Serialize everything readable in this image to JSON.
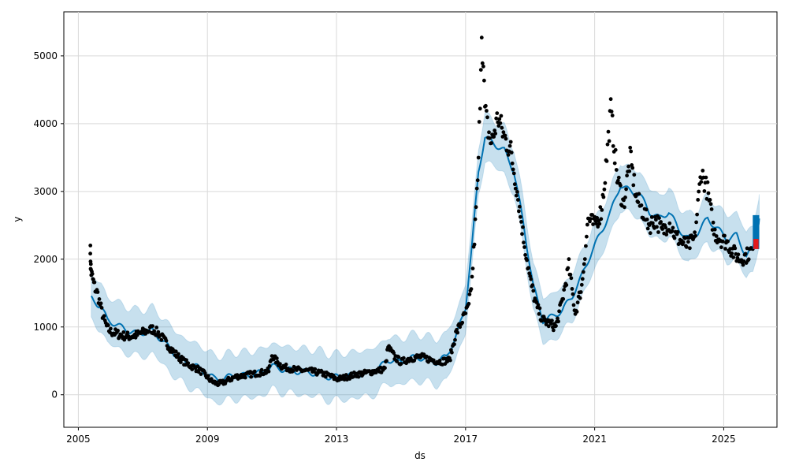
{
  "chart_data": {
    "type": "line",
    "title": "",
    "xlabel": "ds",
    "ylabel": "y",
    "grid": true,
    "legend": "none",
    "xlim": [
      2004.55,
      2026.65
    ],
    "ylim": [
      -480,
      5650
    ],
    "x_ticks": [
      2005,
      2009,
      2013,
      2017,
      2021,
      2025
    ],
    "x_tick_labels": [
      "2005",
      "2009",
      "2013",
      "2017",
      "2021",
      "2025"
    ],
    "y_ticks": [
      0,
      1000,
      2000,
      3000,
      4000,
      5000
    ],
    "y_tick_labels": [
      "0",
      "1000",
      "2000",
      "3000",
      "4000",
      "5000"
    ],
    "series": [
      {
        "kind": "observed",
        "color": "#000000",
        "points": [
          [
            2005.37,
            2200
          ],
          [
            2005.38,
            1920
          ],
          [
            2005.4,
            1800
          ],
          [
            2005.45,
            1700
          ],
          [
            2005.5,
            1600
          ],
          [
            2005.6,
            1480
          ],
          [
            2005.7,
            1280
          ],
          [
            2005.8,
            1100
          ],
          [
            2005.9,
            980
          ],
          [
            2006.0,
            930
          ],
          [
            2006.2,
            900
          ],
          [
            2006.4,
            870
          ],
          [
            2006.6,
            860
          ],
          [
            2006.8,
            880
          ],
          [
            2007.0,
            920
          ],
          [
            2007.3,
            970
          ],
          [
            2007.5,
            900
          ],
          [
            2007.7,
            780
          ],
          [
            2007.9,
            660
          ],
          [
            2008.1,
            560
          ],
          [
            2008.3,
            480
          ],
          [
            2008.5,
            420
          ],
          [
            2008.7,
            380
          ],
          [
            2008.9,
            310
          ],
          [
            2009.1,
            210
          ],
          [
            2009.3,
            160
          ],
          [
            2009.5,
            180
          ],
          [
            2009.7,
            230
          ],
          [
            2009.9,
            270
          ],
          [
            2010.1,
            280
          ],
          [
            2010.3,
            300
          ],
          [
            2010.6,
            320
          ],
          [
            2010.9,
            350
          ],
          [
            2011.0,
            580
          ],
          [
            2011.1,
            520
          ],
          [
            2011.3,
            420
          ],
          [
            2011.6,
            380
          ],
          [
            2011.9,
            360
          ],
          [
            2012.2,
            350
          ],
          [
            2012.5,
            320
          ],
          [
            2012.8,
            280
          ],
          [
            2013.0,
            230
          ],
          [
            2013.3,
            260
          ],
          [
            2013.6,
            300
          ],
          [
            2013.9,
            320
          ],
          [
            2014.2,
            350
          ],
          [
            2014.5,
            380
          ],
          [
            2014.6,
            700
          ],
          [
            2014.8,
            560
          ],
          [
            2015.0,
            480
          ],
          [
            2015.3,
            540
          ],
          [
            2015.6,
            560
          ],
          [
            2015.9,
            520
          ],
          [
            2016.2,
            490
          ],
          [
            2016.5,
            510
          ],
          [
            2016.7,
            900
          ],
          [
            2016.9,
            1100
          ],
          [
            2017.1,
            1300
          ],
          [
            2017.2,
            1700
          ],
          [
            2017.3,
            2500
          ],
          [
            2017.4,
            3400
          ],
          [
            2017.5,
            5420
          ],
          [
            2017.6,
            4200
          ],
          [
            2017.7,
            3900
          ],
          [
            2017.8,
            3700
          ],
          [
            2018.0,
            4100
          ],
          [
            2018.2,
            3800
          ],
          [
            2018.4,
            3600
          ],
          [
            2018.6,
            3000
          ],
          [
            2018.8,
            2300
          ],
          [
            2019.0,
            1700
          ],
          [
            2019.2,
            1300
          ],
          [
            2019.4,
            1100
          ],
          [
            2019.6,
            1050
          ],
          [
            2019.8,
            1000
          ],
          [
            2020.0,
            1400
          ],
          [
            2020.2,
            1900
          ],
          [
            2020.4,
            1200
          ],
          [
            2020.6,
            1600
          ],
          [
            2020.8,
            2600
          ],
          [
            2021.0,
            2500
          ],
          [
            2021.2,
            2700
          ],
          [
            2021.3,
            3100
          ],
          [
            2021.5,
            4200
          ],
          [
            2021.7,
            3200
          ],
          [
            2021.9,
            2800
          ],
          [
            2022.1,
            3500
          ],
          [
            2022.3,
            2900
          ],
          [
            2022.5,
            2700
          ],
          [
            2022.7,
            2500
          ],
          [
            2022.9,
            2600
          ],
          [
            2023.1,
            2400
          ],
          [
            2023.3,
            2550
          ],
          [
            2023.5,
            2350
          ],
          [
            2023.7,
            2250
          ],
          [
            2023.9,
            2200
          ],
          [
            2024.1,
            2300
          ],
          [
            2024.3,
            3300
          ],
          [
            2024.5,
            3000
          ],
          [
            2024.7,
            2400
          ],
          [
            2024.9,
            2300
          ],
          [
            2025.1,
            2250
          ],
          [
            2025.3,
            2100
          ],
          [
            2025.5,
            2000
          ],
          [
            2025.7,
            2050
          ],
          [
            2025.9,
            2150
          ]
        ]
      },
      {
        "kind": "forecast",
        "color": "#0072b2",
        "points": [
          [
            2005.4,
            1420
          ],
          [
            2005.7,
            1300
          ],
          [
            2005.9,
            1100
          ],
          [
            2006.1,
            1060
          ],
          [
            2006.3,
            1000
          ],
          [
            2006.5,
            960
          ],
          [
            2006.8,
            900
          ],
          [
            2007.0,
            920
          ],
          [
            2007.3,
            940
          ],
          [
            2007.5,
            850
          ],
          [
            2007.8,
            700
          ],
          [
            2008.0,
            600
          ],
          [
            2008.3,
            480
          ],
          [
            2008.6,
            430
          ],
          [
            2008.9,
            340
          ],
          [
            2009.2,
            240
          ],
          [
            2009.5,
            230
          ],
          [
            2009.8,
            290
          ],
          [
            2010.1,
            280
          ],
          [
            2010.4,
            300
          ],
          [
            2010.7,
            330
          ],
          [
            2011.0,
            420
          ],
          [
            2011.3,
            380
          ],
          [
            2011.6,
            360
          ],
          [
            2011.9,
            340
          ],
          [
            2012.2,
            330
          ],
          [
            2012.5,
            300
          ],
          [
            2012.8,
            260
          ],
          [
            2013.1,
            260
          ],
          [
            2013.4,
            280
          ],
          [
            2013.7,
            300
          ],
          [
            2014.0,
            320
          ],
          [
            2014.3,
            380
          ],
          [
            2014.6,
            520
          ],
          [
            2014.9,
            480
          ],
          [
            2015.2,
            520
          ],
          [
            2015.5,
            560
          ],
          [
            2015.8,
            520
          ],
          [
            2016.1,
            480
          ],
          [
            2016.4,
            560
          ],
          [
            2016.7,
            850
          ],
          [
            2017.0,
            1300
          ],
          [
            2017.2,
            2200
          ],
          [
            2017.4,
            3300
          ],
          [
            2017.6,
            3800
          ],
          [
            2017.9,
            3700
          ],
          [
            2018.2,
            3600
          ],
          [
            2018.5,
            3300
          ],
          [
            2018.8,
            2500
          ],
          [
            2019.1,
            1600
          ],
          [
            2019.4,
            1100
          ],
          [
            2019.7,
            1150
          ],
          [
            2020.0,
            1250
          ],
          [
            2020.3,
            1450
          ],
          [
            2020.6,
            1750
          ],
          [
            2020.9,
            2100
          ],
          [
            2021.2,
            2400
          ],
          [
            2021.5,
            2700
          ],
          [
            2021.8,
            3100
          ],
          [
            2022.1,
            3000
          ],
          [
            2022.4,
            2950
          ],
          [
            2022.7,
            2700
          ],
          [
            2023.0,
            2600
          ],
          [
            2023.3,
            2700
          ],
          [
            2023.6,
            2450
          ],
          [
            2023.9,
            2300
          ],
          [
            2024.2,
            2400
          ],
          [
            2024.5,
            2600
          ],
          [
            2024.8,
            2450
          ],
          [
            2025.1,
            2300
          ],
          [
            2025.4,
            2350
          ],
          [
            2025.7,
            2050
          ],
          [
            2025.9,
            2150
          ],
          [
            2026.1,
            2600
          ]
        ]
      }
    ],
    "uncertainty_band": {
      "color": "#0072b2",
      "opacity": 0.22,
      "halfwidth": 340
    },
    "future_markers": {
      "blue_x_range": [
        2025.9,
        2026.1
      ],
      "blue_y_range": [
        2150,
        2650
      ],
      "red_x_range": [
        2025.92,
        2026.08
      ],
      "red_y_range": [
        2150,
        2300
      ]
    }
  }
}
